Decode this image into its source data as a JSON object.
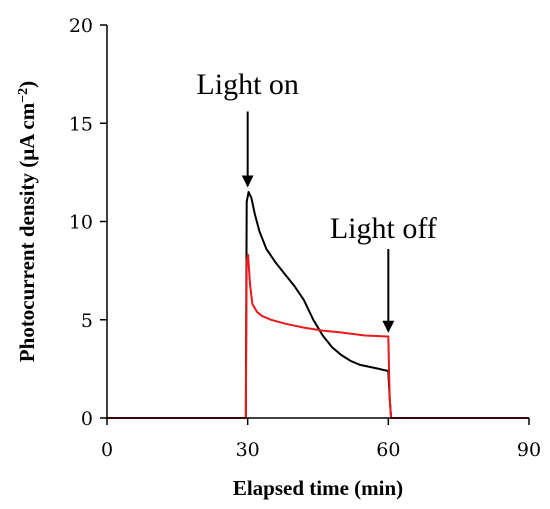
{
  "chart_data": {
    "type": "line",
    "xlabel": "Elapsed time (min)",
    "ylabel_main": "Photocurrent density (μA cm",
    "ylabel_sup": "−2",
    "ylabel_close": ")",
    "xlim": [
      0,
      90
    ],
    "ylim": [
      0,
      20
    ],
    "xticks": [
      0,
      30,
      60,
      90
    ],
    "yticks": [
      0,
      5,
      10,
      15,
      20
    ],
    "xtick_labels": [
      "0",
      "30",
      "60",
      "90"
    ],
    "ytick_labels": [
      "0",
      "5",
      "10",
      "15",
      "20"
    ],
    "grid": false,
    "legend": "none",
    "series": [
      {
        "color": "#000000",
        "x": [
          0,
          29.6,
          29.8,
          30.2,
          30.8,
          31.5,
          32.5,
          34,
          36,
          38,
          40,
          42,
          44,
          46,
          48,
          50,
          52,
          54,
          56,
          58,
          59.8,
          60.0,
          60.3,
          60.6,
          90
        ],
        "y": [
          0,
          0,
          11.0,
          11.5,
          11.2,
          10.4,
          9.5,
          8.6,
          7.9,
          7.3,
          6.7,
          6.0,
          5.0,
          4.2,
          3.6,
          3.2,
          2.9,
          2.7,
          2.6,
          2.5,
          2.4,
          2.4,
          1.0,
          0,
          0
        ]
      },
      {
        "color": "#e6191b",
        "x": [
          0,
          29.6,
          29.8,
          30.1,
          30.5,
          31,
          32,
          33,
          35,
          38,
          42,
          46,
          50,
          55,
          59.8,
          60.0,
          60.3,
          60.6,
          90
        ],
        "y": [
          0,
          0,
          8.0,
          8.3,
          6.8,
          5.8,
          5.4,
          5.2,
          5.0,
          4.8,
          4.6,
          4.45,
          4.35,
          4.2,
          4.15,
          4.15,
          1.0,
          0,
          0
        ]
      }
    ],
    "annotations": [
      {
        "text": "Light on",
        "arrow_x": 30,
        "arrow_y_top": 15.6,
        "arrow_y_tip": 11.8
      },
      {
        "text": "Light off",
        "arrow_x": 60,
        "arrow_y_top": 8.6,
        "arrow_y_tip": 4.4
      }
    ]
  }
}
